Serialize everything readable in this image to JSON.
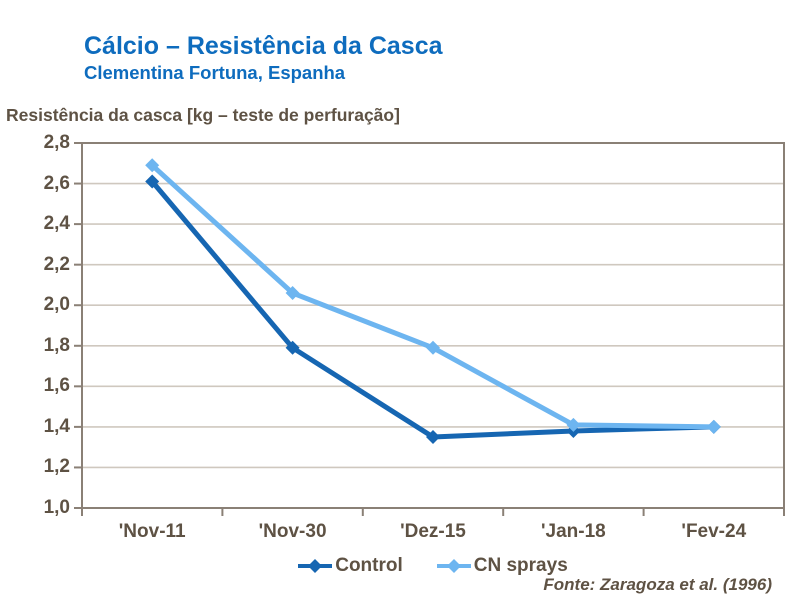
{
  "header": {
    "title": "Cálcio – Resistência da Casca",
    "subtitle": "Clementina Fortuna, Espanha"
  },
  "axis_label": "Resistência da casca [kg – teste de perfuração]",
  "source": "Fonte: Zaragoza et al. (1996)",
  "colors": {
    "title_blue": "#0E6CBE",
    "control": "#1666B2",
    "cn_sprays": "#6DB5F0",
    "text_brown": "#5E5244",
    "axis": "#8A8076",
    "grid": "#CFC8BF"
  },
  "chart_data": {
    "type": "line",
    "title": "Cálcio – Resistência da Casca",
    "subtitle": "Clementina Fortuna, Espanha",
    "ylabel": "Resistência da casca [kg – teste de perfuração]",
    "categories": [
      "'Nov-11",
      "'Nov-30",
      "'Dez-15",
      "'Jan-18",
      "'Fev-24"
    ],
    "series": [
      {
        "name": "Control",
        "color_key": "control",
        "values": [
          2.61,
          1.79,
          1.35,
          1.38,
          1.4
        ]
      },
      {
        "name": "CN sprays",
        "color_key": "cn_sprays",
        "values": [
          2.69,
          2.06,
          1.79,
          1.41,
          1.4
        ]
      }
    ],
    "ylim": [
      1.0,
      2.8
    ],
    "ytick_step": 0.2,
    "ytick_labels": [
      "2,8",
      "2,6",
      "2,4",
      "2,2",
      "2,0",
      "1,8",
      "1,6",
      "1,4",
      "1,2",
      "1,0"
    ],
    "decimal_separator": ",",
    "grid": true,
    "marker": "diamond",
    "legend_position": "bottom"
  }
}
